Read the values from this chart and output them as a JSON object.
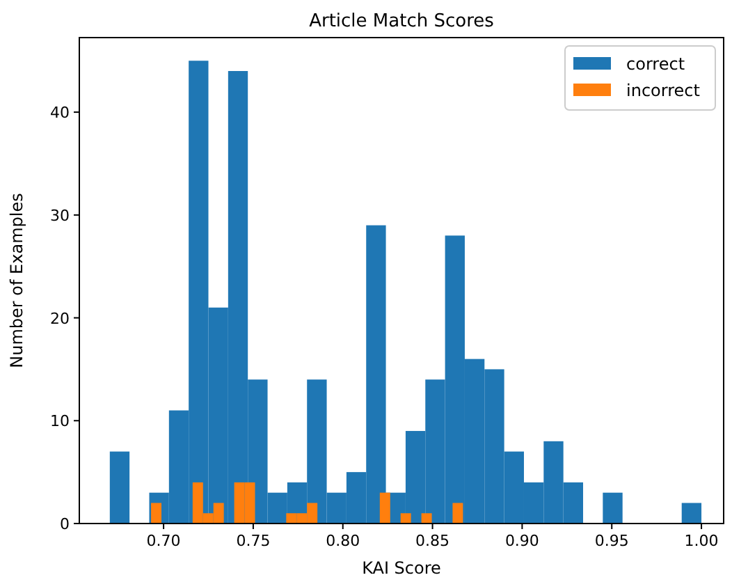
{
  "chart_data": {
    "type": "histogram",
    "title": "Article Match Scores",
    "xlabel": "KAI Score",
    "ylabel": "Number of Examples",
    "xlim": [
      0.653,
      1.0124
    ],
    "xticks": [
      {
        "value": 0.7,
        "label": "0.70"
      },
      {
        "value": 0.75,
        "label": "0.75"
      },
      {
        "value": 0.8,
        "label": "0.80"
      },
      {
        "value": 0.85,
        "label": "0.85"
      },
      {
        "value": 0.9,
        "label": "0.90"
      },
      {
        "value": 0.95,
        "label": "0.95"
      },
      {
        "value": 1.0,
        "label": "1.00"
      }
    ],
    "ylim": [
      0,
      47.25
    ],
    "yticks": [
      0,
      10,
      20,
      30,
      40
    ],
    "legend": "top right",
    "bins": [
      0.67,
      0.681,
      0.692,
      0.703,
      0.714,
      0.725,
      0.736,
      0.747,
      0.758,
      0.769,
      0.78,
      0.791,
      0.802,
      0.813,
      0.824,
      0.835,
      0.846,
      0.857,
      0.868,
      0.879,
      0.89,
      0.901,
      0.912,
      0.923,
      0.934,
      0.945,
      0.956,
      0.967,
      0.978,
      0.989,
      1.0
    ],
    "series": [
      {
        "name": "correct",
        "color": "#1f77b4",
        "values": [
          7,
          0,
          3,
          11,
          45,
          21,
          44,
          14,
          3,
          4,
          14,
          3,
          5,
          29,
          3,
          9,
          14,
          28,
          16,
          15,
          7,
          4,
          8,
          4,
          0,
          3,
          0,
          0,
          0,
          2
        ]
      },
      {
        "name": "incorrect",
        "color": "#ff7f0e",
        "bins": [
          0.693,
          0.6988,
          0.7046,
          0.7104,
          0.7162,
          0.722,
          0.7278,
          0.7336,
          0.7394,
          0.7452,
          0.751,
          0.7568,
          0.7626,
          0.7684,
          0.7742,
          0.78,
          0.7858,
          0.7916,
          0.7974,
          0.8032,
          0.809,
          0.8148,
          0.8206,
          0.8264,
          0.8322,
          0.838,
          0.8438,
          0.8496,
          0.8554,
          0.8612,
          0.867
        ],
        "values": [
          2,
          0,
          0,
          0,
          4,
          1,
          2,
          0,
          4,
          4,
          0,
          0,
          0,
          1,
          1,
          2,
          0,
          0,
          0,
          0,
          0,
          0,
          3,
          0,
          1,
          0,
          1,
          0,
          0,
          2
        ]
      }
    ]
  }
}
